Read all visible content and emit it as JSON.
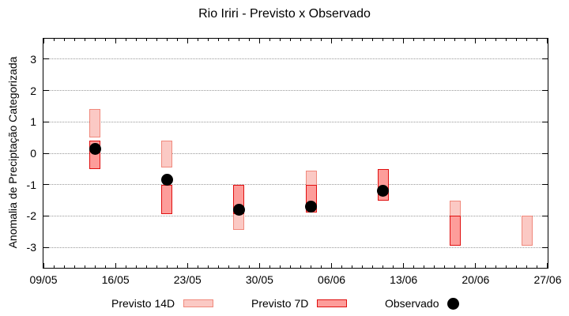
{
  "title": "Rio Iriri - Previsto x Observado",
  "chart_data": {
    "type": "bar",
    "subtype": "floating-range-bars-with-scatter",
    "title": "Rio Iriri - Previsto x Observado",
    "xlabel": "",
    "ylabel": "Anomalia de Preciptação Categorizada",
    "ylim": [
      -3.65,
      3.65
    ],
    "yticks": [
      3,
      2,
      1,
      0,
      -1,
      -2,
      -3
    ],
    "grid": "dotted horizontal gridlines at each integer y tick",
    "legend_position": "bottom",
    "x_axis": {
      "span_days": 49,
      "tick_labels": [
        "09/05",
        "16/05",
        "23/05",
        "30/05",
        "06/06",
        "13/06",
        "20/06",
        "27/06"
      ],
      "tick_days": [
        0,
        7,
        14,
        21,
        28,
        35,
        42,
        49
      ],
      "minor_tick_every_days": 1
    },
    "series": [
      {
        "name": "Previsto 14D",
        "kind": "range-bar",
        "fill": "#fbc9c4",
        "border": "#f0897c",
        "points": [
          {
            "date": "14/05",
            "day": 5,
            "low": 0.5,
            "high": 1.4
          },
          {
            "date": "21/05",
            "day": 12,
            "low": -0.45,
            "high": 0.4
          },
          {
            "date": "28/05",
            "day": 19,
            "low": -2.45,
            "high": -1.4
          },
          {
            "date": "04/06",
            "day": 26,
            "low": -1.5,
            "high": -0.55
          },
          {
            "date": "11/06",
            "day": 33,
            "low": -1.45,
            "high": -0.5
          },
          {
            "date": "18/06",
            "day": 40,
            "low": -2.45,
            "high": -1.5
          },
          {
            "date": "25/06",
            "day": 47,
            "low": -2.95,
            "high": -2.0
          }
        ]
      },
      {
        "name": "Previsto 7D",
        "kind": "range-bar",
        "fill": "#fd9d9a",
        "border": "#e01010",
        "points": [
          {
            "date": "14/05",
            "day": 5,
            "low": -0.5,
            "high": 0.4
          },
          {
            "date": "21/05",
            "day": 12,
            "low": -1.95,
            "high": -1.0
          },
          {
            "date": "28/05",
            "day": 19,
            "low": -1.95,
            "high": -1.0
          },
          {
            "date": "04/06",
            "day": 26,
            "low": -1.9,
            "high": -1.0
          },
          {
            "date": "11/06",
            "day": 33,
            "low": -1.5,
            "high": -0.5
          },
          {
            "date": "18/06",
            "day": 40,
            "low": -2.95,
            "high": -2.0
          }
        ]
      },
      {
        "name": "Observado",
        "kind": "scatter",
        "color": "#000000",
        "points": [
          {
            "date": "14/05",
            "day": 5,
            "value": 0.15
          },
          {
            "date": "21/05",
            "day": 12,
            "value": -0.85
          },
          {
            "date": "28/05",
            "day": 19,
            "value": -1.8
          },
          {
            "date": "04/06",
            "day": 26,
            "value": -1.7
          },
          {
            "date": "11/06",
            "day": 33,
            "value": -1.2
          }
        ]
      }
    ]
  },
  "legend": {
    "items": [
      {
        "label": "Previsto 14D",
        "swatch": "light-pink-box"
      },
      {
        "label": "Previsto 7D",
        "swatch": "red-box"
      },
      {
        "label": "Observado",
        "swatch": "black-dot"
      }
    ]
  },
  "colors": {
    "previsto14_fill": "#fbc9c4",
    "previsto14_border": "#f0897c",
    "previsto7_fill": "#fd9d9a",
    "previsto7_border": "#e01010",
    "observado": "#000000",
    "gridline": "#999999",
    "axis": "#000000",
    "background": "#ffffff"
  }
}
